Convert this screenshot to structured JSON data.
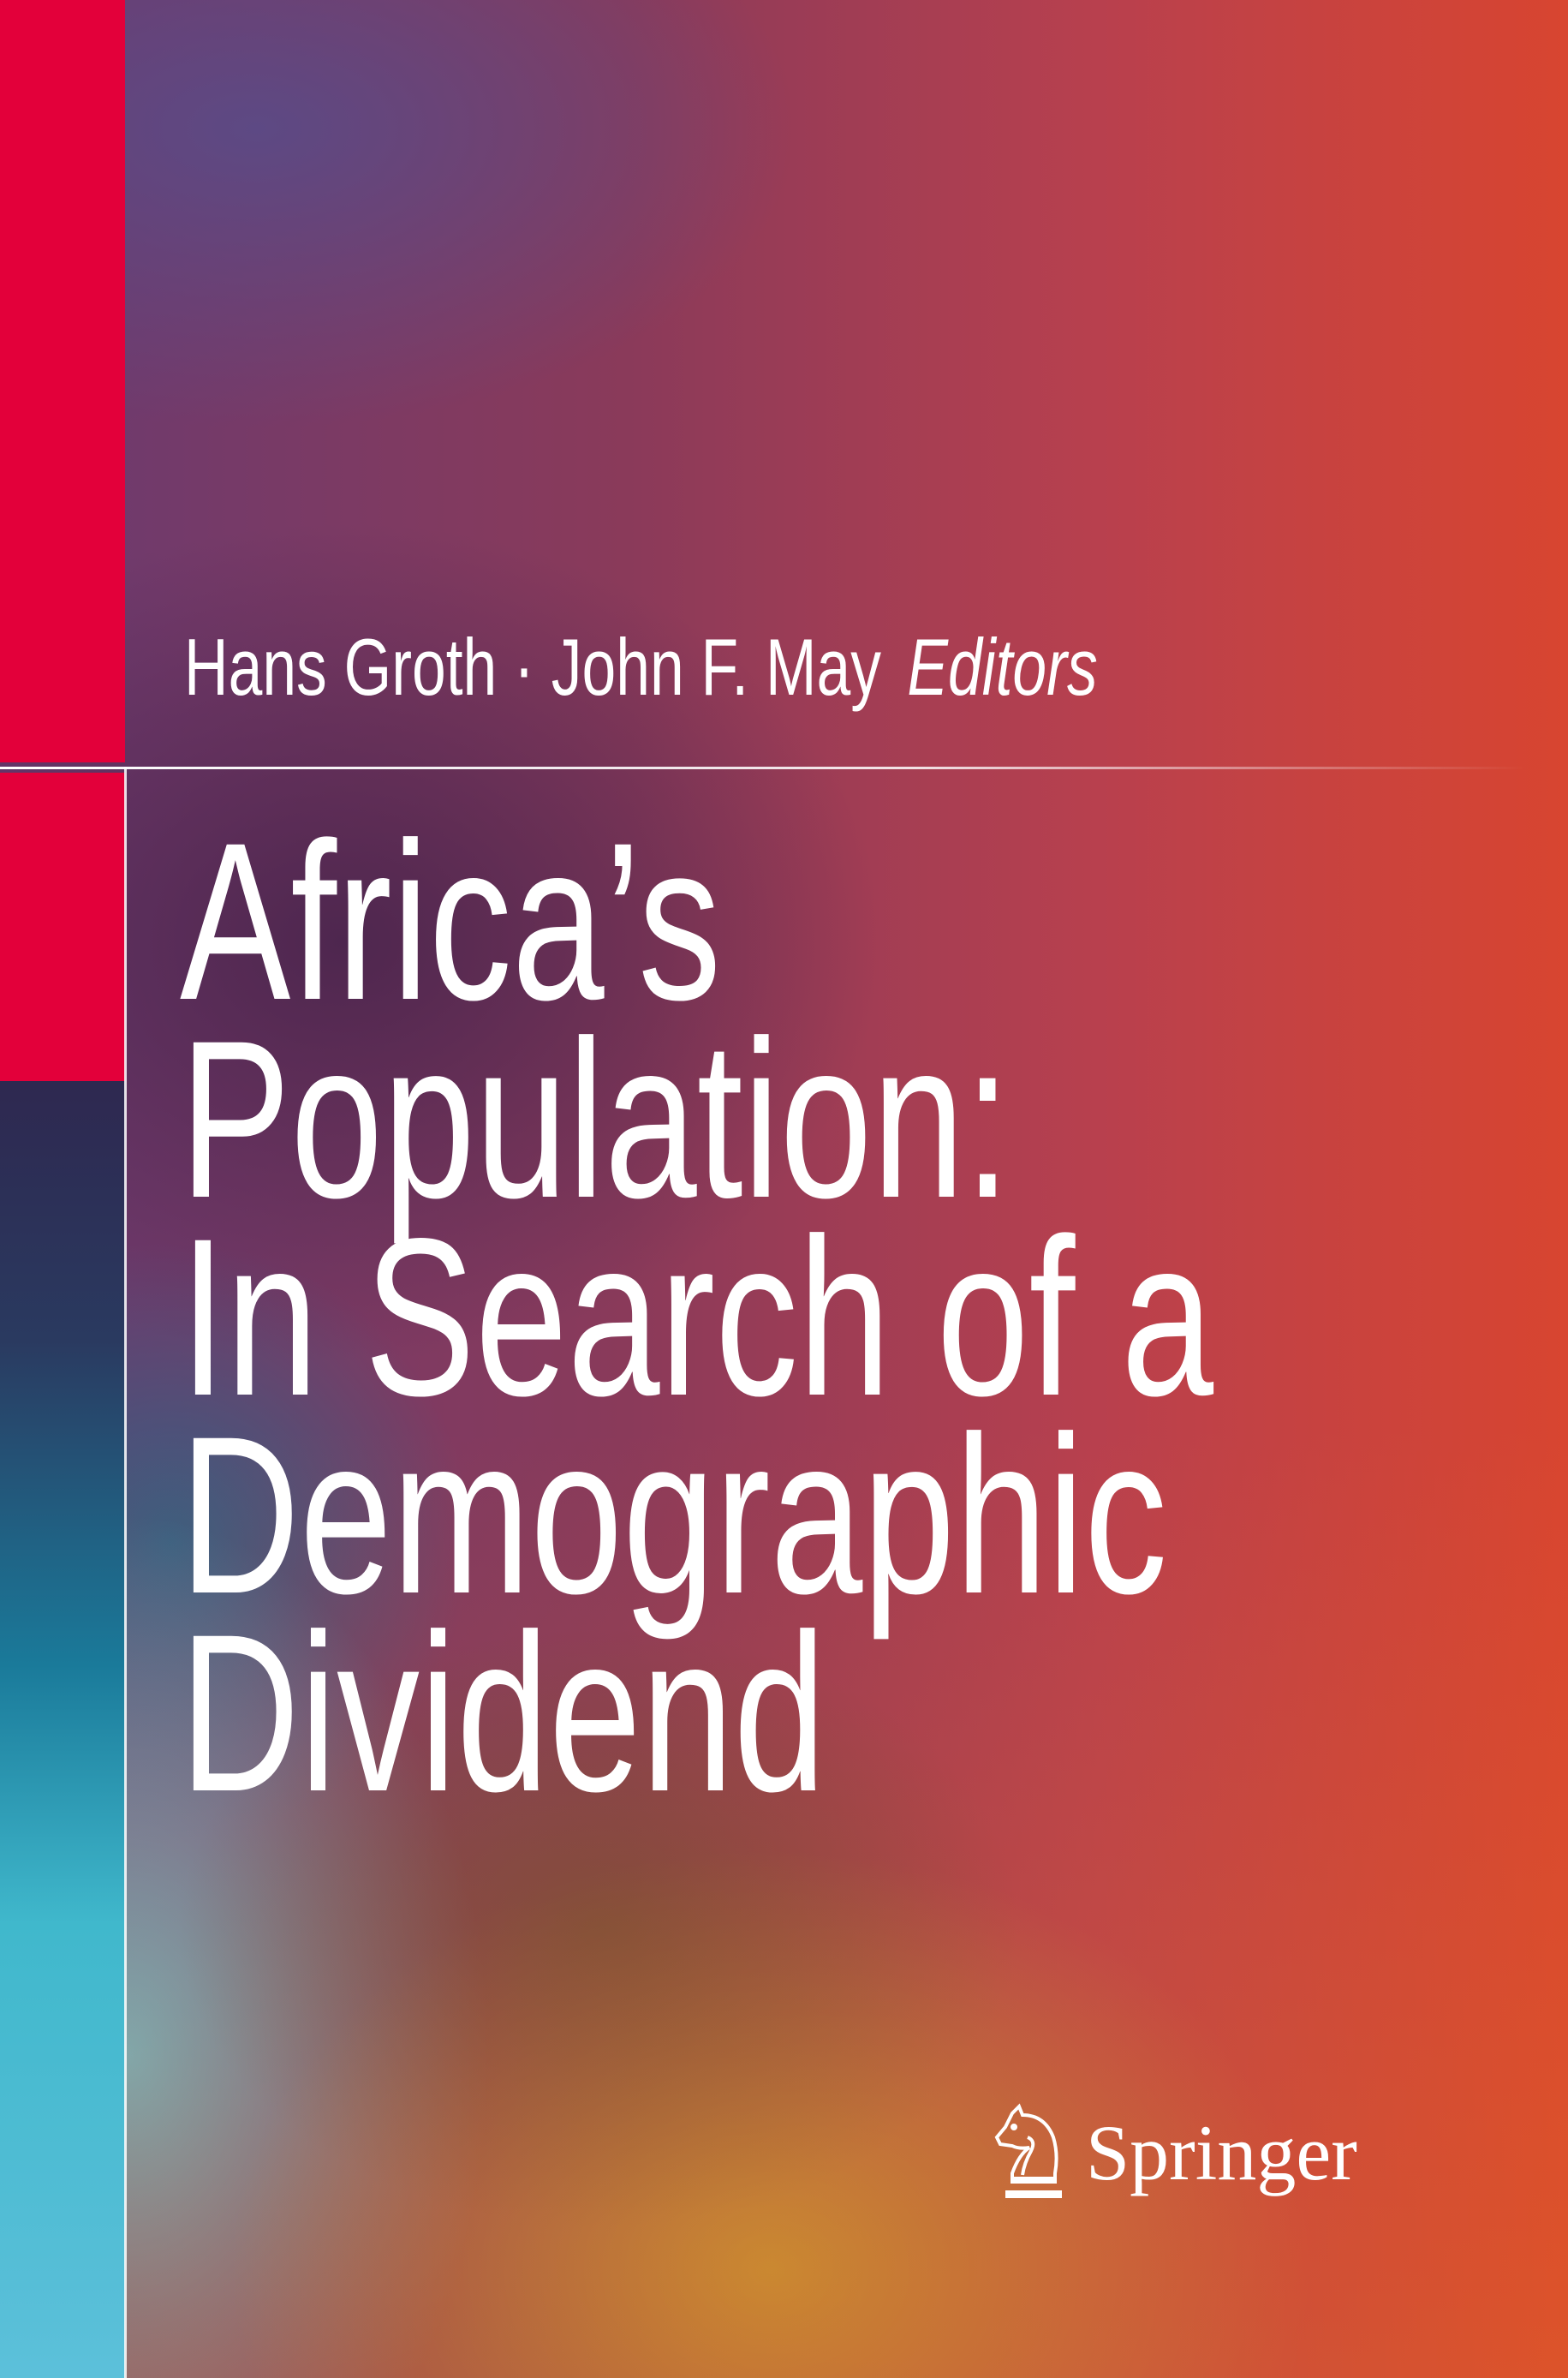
{
  "cover": {
    "editors": "Hans Groth · John F. May",
    "editors_role": "Editors",
    "title_lines": [
      "Africa’s",
      "Population:",
      "In Search of a",
      "Demographic",
      "Dividend"
    ],
    "publisher": "Springer",
    "publisher_logo_icon": "springer-horse-icon",
    "colors": {
      "accent_strip": "#e3003a",
      "text": "#ffffff"
    }
  }
}
